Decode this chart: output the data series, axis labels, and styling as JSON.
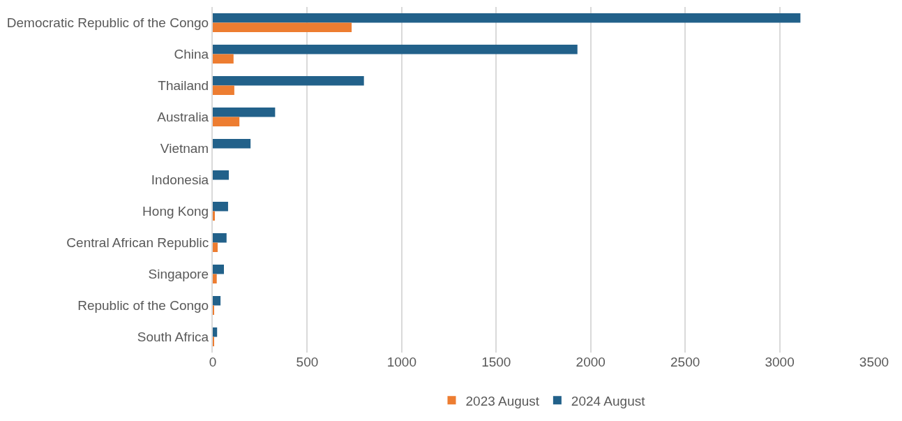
{
  "chart_data": {
    "type": "bar",
    "orientation": "horizontal",
    "categories": [
      "Democratic Republic of the Congo",
      "China",
      "Thailand",
      "Australia",
      "Vietnam",
      "Indonesia",
      "Hong Kong",
      "Central African Republic",
      "Singapore",
      "Republic of the Congo",
      "South Africa"
    ],
    "series": [
      {
        "name": "2023 August",
        "color": "#ed7d31",
        "values": [
          735,
          110,
          114,
          141,
          0,
          0,
          11,
          26,
          21,
          4,
          4
        ]
      },
      {
        "name": "2024 August",
        "color": "#22618a",
        "values": [
          3110,
          1930,
          800,
          330,
          200,
          85,
          81,
          73,
          59,
          41,
          23
        ]
      }
    ],
    "xlim": [
      0,
      3500
    ],
    "xticks": [
      0,
      500,
      1000,
      1500,
      2000,
      2500,
      3000,
      3500
    ],
    "grid": "x",
    "legend": "bottom"
  }
}
